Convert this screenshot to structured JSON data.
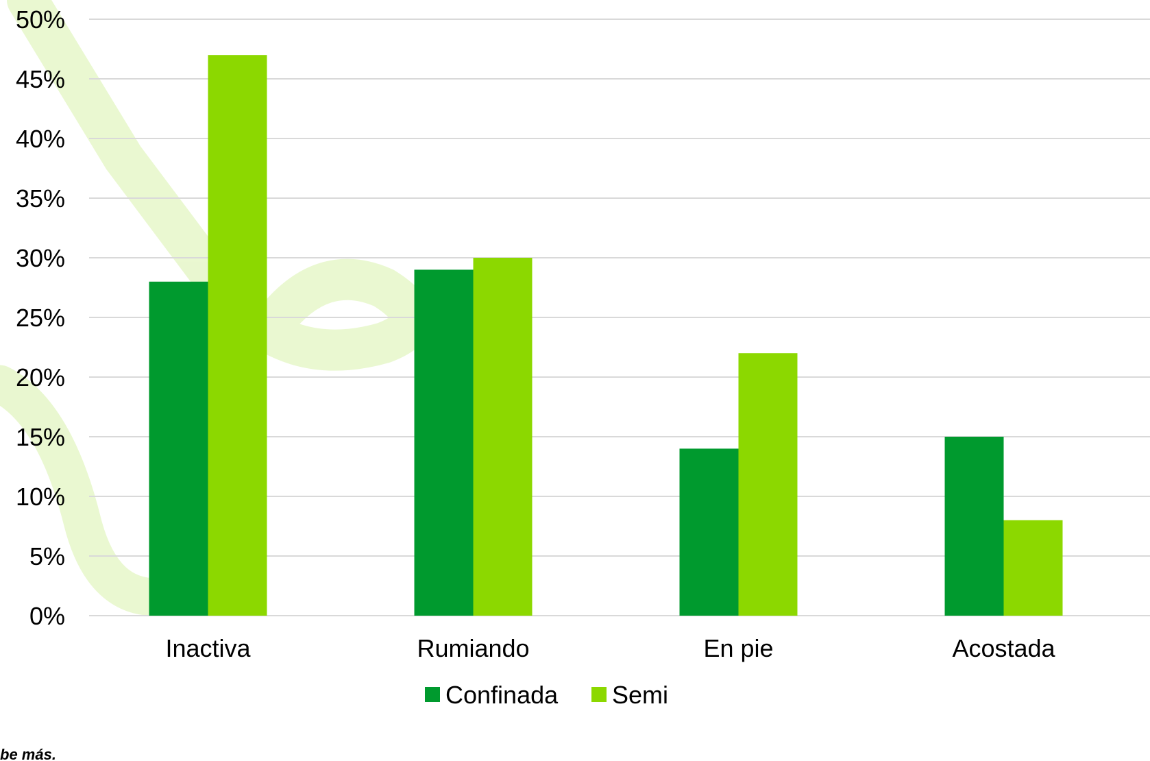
{
  "chart_data": {
    "type": "bar",
    "title": "",
    "xlabel": "",
    "ylabel": "",
    "categories": [
      "Inactiva",
      "Rumiando",
      "En pie",
      "Acostada"
    ],
    "series": [
      {
        "name": "Confinada",
        "color": "#009a2e",
        "values": [
          28,
          29,
          14,
          15
        ]
      },
      {
        "name": "Semi",
        "color": "#8cd800",
        "values": [
          47,
          30,
          22,
          8
        ]
      }
    ],
    "ylim": [
      0,
      50
    ],
    "y_ticks": [
      0,
      5,
      10,
      15,
      20,
      25,
      30,
      35,
      40,
      45,
      50
    ],
    "y_tick_labels": [
      "0%",
      "5%",
      "10%",
      "15%",
      "20%",
      "25%",
      "30%",
      "35%",
      "40%",
      "45%",
      "50%"
    ],
    "grid": true,
    "legend_position": "bottom"
  },
  "watermark": {
    "text": "be más."
  }
}
